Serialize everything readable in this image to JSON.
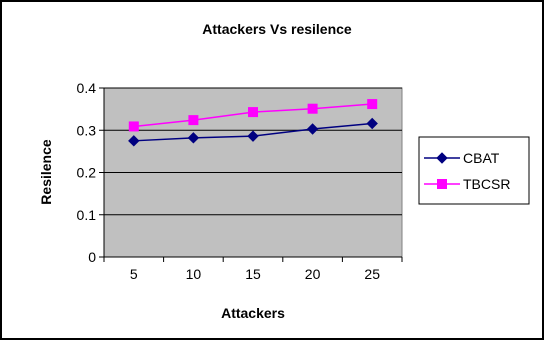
{
  "chart_data": {
    "type": "line",
    "title": "Attackers Vs resilence",
    "xlabel": "Attackers",
    "ylabel": "Resilence",
    "categories": [
      "5",
      "10",
      "15",
      "20",
      "25"
    ],
    "ylim": [
      0,
      0.4
    ],
    "yticks": [
      "0",
      "0.1",
      "0.2",
      "0.3",
      "0.4"
    ],
    "grid": true,
    "legend_position": "right",
    "series": [
      {
        "name": "CBAT",
        "values": [
          0.275,
          0.282,
          0.286,
          0.303,
          0.316
        ],
        "color": "#000080",
        "marker": "diamond"
      },
      {
        "name": "TBCSR",
        "values": [
          0.309,
          0.324,
          0.343,
          0.351,
          0.362
        ],
        "color": "#ff00ff",
        "marker": "square"
      }
    ],
    "plot_background": "#c0c0c0"
  }
}
